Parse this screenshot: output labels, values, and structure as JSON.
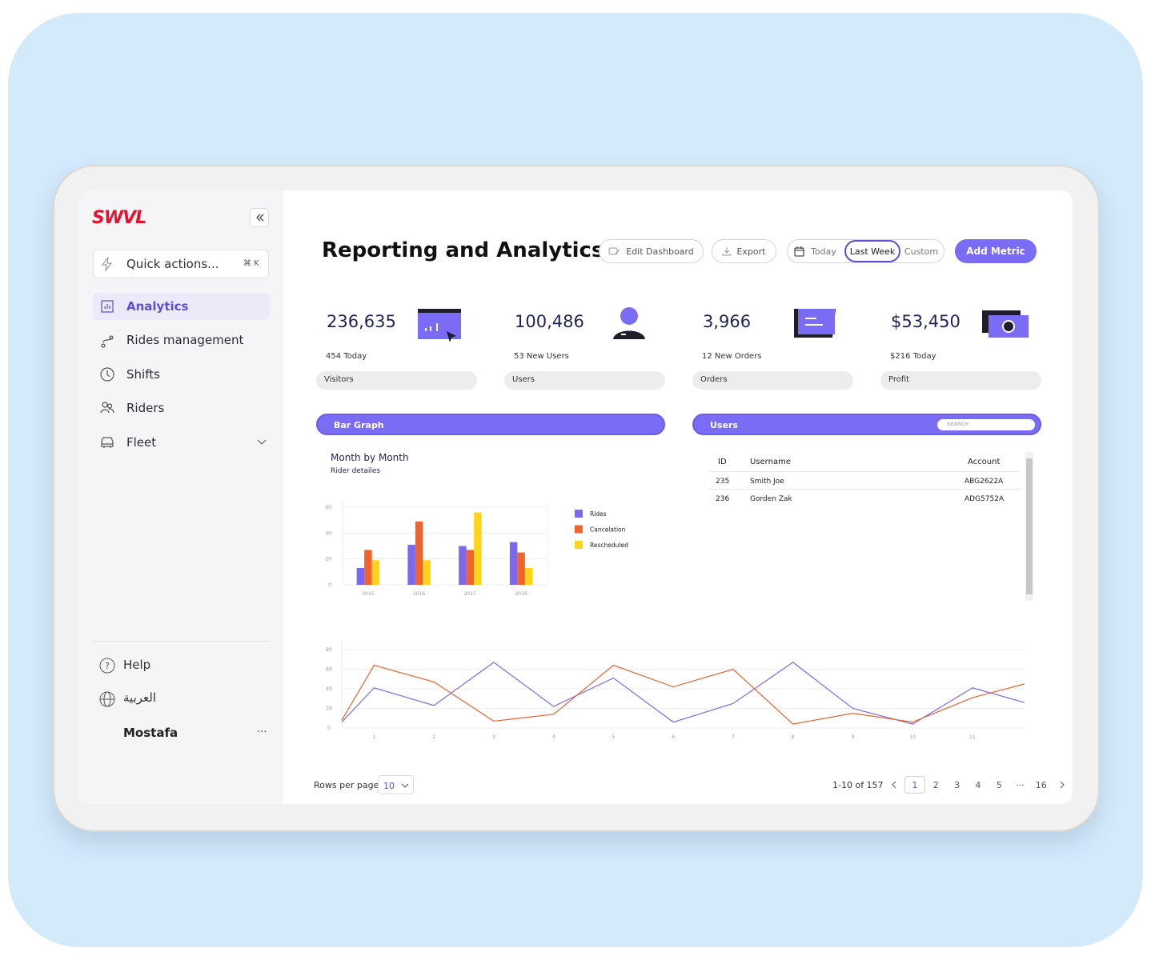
{
  "sidebar": {
    "logo": "SWVL",
    "quick_actions": "Quick actions...",
    "shortcut": "⌘ K",
    "nav": [
      "Analytics",
      "Rides management",
      "Shifts",
      "Riders",
      "Fleet"
    ],
    "active": "Analytics",
    "help": "Help",
    "language": "العربية",
    "user": "Mostafa",
    "more": "···"
  },
  "header": {
    "title": "Reporting and Analytics",
    "edit": "Edit Dashboard",
    "export": "Export",
    "ranges": [
      "Today",
      "Last Week",
      "Custom"
    ],
    "active_range": "Last Week",
    "add": "Add Metric"
  },
  "metrics": [
    {
      "value": "236,635",
      "sub": "454 Today",
      "label": "Visitors"
    },
    {
      "value": "100,486",
      "sub": "53 New Users",
      "label": "Users"
    },
    {
      "value": "3,966",
      "sub": "12 New Orders",
      "label": "Orders"
    },
    {
      "value": "$53,450",
      "sub": "$216 Today",
      "label": "Profit"
    }
  ],
  "bar_panel": {
    "header": "Bar Graph",
    "title": "Month by Month",
    "subtitle": "Rider detailes"
  },
  "users_panel": {
    "header": "Users",
    "search": "SEARCH",
    "columns": [
      "ID",
      "Username",
      "Account"
    ],
    "rows": [
      [
        "235",
        "Smith Joe",
        "ABG2622A"
      ],
      [
        "236",
        "Gorden Zak",
        "ADG5752A"
      ]
    ]
  },
  "chart_data": [
    {
      "type": "bar",
      "categories": [
        "2015",
        "2016",
        "2017",
        "2018"
      ],
      "series": [
        {
          "name": "Rides",
          "color": "#7b68ee",
          "values": [
            13,
            31,
            30,
            33
          ]
        },
        {
          "name": "Cancelation",
          "color": "#f4622c",
          "values": [
            27,
            49,
            27,
            25
          ]
        },
        {
          "name": "Rescheduled",
          "color": "#fdd31c",
          "values": [
            19,
            19,
            56,
            13
          ]
        }
      ],
      "ylim": [
        0,
        60
      ],
      "yticks": [
        0,
        20,
        40,
        60
      ],
      "grid": true,
      "legend": "right"
    },
    {
      "type": "line",
      "x": [
        0.46,
        1,
        2,
        3,
        4,
        5,
        6,
        7,
        8,
        9,
        10,
        11,
        11.87
      ],
      "xlim": [
        0.46,
        11.87
      ],
      "xticks": [
        1,
        2,
        3,
        4,
        5,
        6,
        7,
        8,
        9,
        10,
        11
      ],
      "ylim": [
        0,
        80
      ],
      "yticks": [
        0,
        20,
        40,
        60,
        80
      ],
      "grid": true,
      "series": [
        {
          "color": "#7b68ee",
          "values": [
            6,
            41,
            23,
            67,
            22,
            51,
            6,
            25,
            67,
            20,
            4,
            41,
            26
          ]
        },
        {
          "color": "#e8622c",
          "values": [
            8,
            64,
            47,
            7,
            14,
            64,
            42,
            60,
            4,
            15,
            6,
            31,
            45
          ]
        }
      ]
    }
  ],
  "pagination": {
    "rows_label": "Rows per page",
    "rows": "10",
    "range": "1-10 of 157",
    "pages": [
      "1",
      "2",
      "3",
      "4",
      "5",
      "···",
      "16"
    ],
    "active": "1"
  }
}
